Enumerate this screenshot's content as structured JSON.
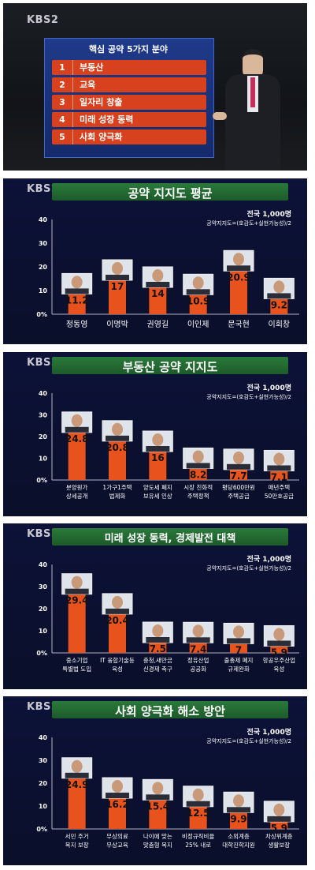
{
  "logo": "KBS2",
  "panel1": {
    "title": "핵심 공약 5가지 분야",
    "items": [
      {
        "num": "1",
        "label": "부동산"
      },
      {
        "num": "2",
        "label": "교육"
      },
      {
        "num": "3",
        "label": "일자리 창출"
      },
      {
        "num": "4",
        "label": "미래 성장 동력"
      },
      {
        "num": "5",
        "label": "사회 양극화"
      }
    ]
  },
  "subtitle_total": "전국 1,000명",
  "subtitle_formula": "공약지지도=(호감도+실현가능성)/2",
  "chart_data": [
    {
      "type": "bar",
      "title": "공약 지지도 평균",
      "categories": [
        "정동영",
        "이명박",
        "권영길",
        "이인제",
        "문국현",
        "이회창"
      ],
      "values": [
        11.2,
        17,
        14,
        10.9,
        20.9,
        9.2
      ],
      "value_labels": [
        "11.2",
        "17",
        "14",
        "10.9",
        "20.9",
        "9.2"
      ],
      "y_ticks": [
        "40",
        "30",
        "20",
        "10",
        "0%"
      ],
      "ylim": [
        0,
        40
      ]
    },
    {
      "type": "bar",
      "title": "부동산 공약 지지도",
      "categories": [
        [
          "분양원가",
          "상세공개"
        ],
        [
          "1가구1주택",
          "법제화"
        ],
        [
          "양도세 폐지",
          "보유세 인상"
        ],
        [
          "시장 친화적",
          "주택정책"
        ],
        [
          "평당600만원",
          "주택공급"
        ],
        [
          "매년주택",
          "50만호공급"
        ]
      ],
      "values": [
        24.8,
        20.8,
        16,
        8.2,
        7.7,
        7.1
      ],
      "value_labels": [
        "24.8",
        "20.8",
        "16",
        "8.2",
        "7.7",
        "7.1"
      ],
      "y_ticks": [
        "40",
        "30",
        "20",
        "10",
        "0%"
      ],
      "ylim": [
        0,
        40
      ]
    },
    {
      "type": "bar",
      "title": "미래 성장 동력, 경제발전 대책",
      "categories": [
        [
          "중소기업",
          "특별법 도입"
        ],
        [
          "IT 융합기술등",
          "육성"
        ],
        [
          "충청,새만금",
          "신경제 축구"
        ],
        [
          "정유산업",
          "공공화"
        ],
        [
          "출총제 폐지",
          "규제완화"
        ],
        [
          "항공우주산업",
          "육성"
        ]
      ],
      "values": [
        29.4,
        20.4,
        7.5,
        7.4,
        7,
        5.9
      ],
      "value_labels": [
        "29.4",
        "20.4",
        "7.5",
        "7.4",
        "7",
        "5.9"
      ],
      "y_ticks": [
        "40",
        "30",
        "20",
        "10",
        "0%"
      ],
      "ylim": [
        0,
        40
      ]
    },
    {
      "type": "bar",
      "title": "사회 양극화 해소 방안",
      "categories": [
        [
          "서민 주거",
          "복지 보장"
        ],
        [
          "무상의료",
          "무상교육"
        ],
        [
          "나이에 맞는",
          "맞춤형 복지"
        ],
        [
          "비정규직비율",
          "25% 내로"
        ],
        [
          "소외계층",
          "대학진학지원"
        ],
        [
          "차상위계층",
          "생활보장"
        ]
      ],
      "values": [
        24.9,
        16.2,
        15.4,
        12.5,
        9.9,
        5.9
      ],
      "value_labels": [
        "24.9",
        "16.2",
        "15.4",
        "12.5",
        "9.9",
        "5.9"
      ],
      "y_ticks": [
        "40",
        "30",
        "20",
        "10",
        "0%"
      ],
      "ylim": [
        0,
        40
      ]
    }
  ]
}
